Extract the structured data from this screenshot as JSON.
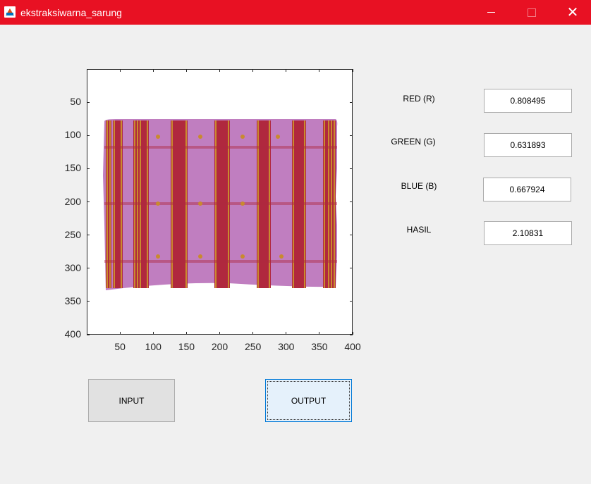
{
  "window": {
    "title": "ekstraksiwarna_sarung",
    "minimize_label": "—",
    "close_label": "✕"
  },
  "axes": {
    "y_ticks": [
      "50",
      "100",
      "150",
      "200",
      "250",
      "300",
      "350",
      "400"
    ],
    "x_ticks": [
      "50",
      "100",
      "150",
      "200",
      "250",
      "300",
      "350",
      "400"
    ],
    "image": {
      "base_color": "#c07ec0",
      "stripe_color": "#b0283e",
      "gold_color": "#c98a2e"
    }
  },
  "fields": [
    {
      "label": "RED (R)",
      "value": "0.808495"
    },
    {
      "label": "GREEN (G)",
      "value": "0.631893"
    },
    {
      "label": "BLUE (B)",
      "value": "0.667924"
    },
    {
      "label": "HASIL",
      "value": "2.10831"
    }
  ],
  "buttons": {
    "input": "INPUT",
    "output": "OUTPUT"
  },
  "colors": {
    "titlebar": "#e81123",
    "background": "#f0f0f0"
  }
}
